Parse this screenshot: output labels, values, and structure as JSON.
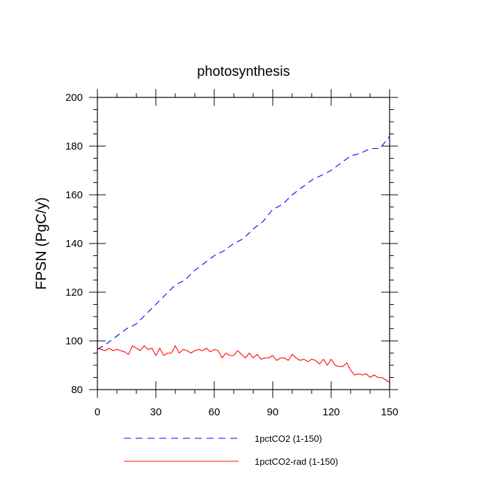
{
  "chart_data": {
    "type": "line",
    "title": "photosynthesis",
    "xlabel": "",
    "ylabel": "FPSN  (PgC/y)",
    "xlim": [
      0,
      150
    ],
    "ylim": [
      80,
      200
    ],
    "xticks": [
      0,
      30,
      60,
      90,
      120,
      150
    ],
    "yticks": [
      80,
      100,
      120,
      140,
      160,
      180,
      200
    ],
    "grid": false,
    "legend_position": "bottom",
    "series": [
      {
        "name": "1pctCO2 (1-150)",
        "color": "#0000ff",
        "style": "dashed",
        "x": [
          0,
          5,
          10,
          15,
          20,
          25,
          30,
          35,
          40,
          45,
          50,
          55,
          60,
          65,
          70,
          75,
          80,
          85,
          90,
          95,
          100,
          105,
          110,
          115,
          120,
          125,
          130,
          135,
          140,
          145,
          150
        ],
        "values": [
          96.5,
          99,
          102,
          105,
          107,
          111,
          115,
          119,
          123,
          125,
          129,
          132,
          135,
          137,
          140,
          142,
          146,
          149,
          154,
          156,
          160,
          163,
          166,
          168,
          170,
          173,
          176,
          177,
          179,
          179,
          184
        ]
      },
      {
        "name": "1pctCO2-rad (1-150)",
        "color": "#ff0000",
        "style": "solid",
        "x": [
          0,
          2,
          4,
          6,
          8,
          10,
          12,
          14,
          16,
          18,
          20,
          22,
          24,
          26,
          28,
          30,
          32,
          34,
          36,
          38,
          40,
          42,
          44,
          46,
          48,
          50,
          52,
          54,
          56,
          58,
          60,
          62,
          64,
          66,
          68,
          70,
          72,
          74,
          76,
          78,
          80,
          82,
          84,
          86,
          88,
          90,
          92,
          94,
          96,
          98,
          100,
          102,
          104,
          106,
          108,
          110,
          112,
          114,
          116,
          118,
          120,
          122,
          124,
          126,
          128,
          130,
          132,
          134,
          136,
          138,
          140,
          142,
          144,
          146,
          148,
          150
        ],
        "values": [
          97,
          96.5,
          96,
          97,
          96,
          96.5,
          96,
          95.5,
          94.5,
          98,
          97,
          96,
          98,
          96.5,
          97,
          94,
          97,
          94,
          95,
          95,
          98,
          95,
          96.5,
          96,
          95,
          96,
          96.5,
          96,
          97,
          95.5,
          96.5,
          96,
          93,
          95,
          94,
          94,
          96,
          94.5,
          93,
          95,
          93,
          94.5,
          92.5,
          93,
          93,
          94,
          92,
          93,
          93,
          92,
          94.5,
          93,
          92,
          92.5,
          91.5,
          92.5,
          92,
          90.5,
          92.5,
          90,
          92.5,
          90,
          89.5,
          89.5,
          91,
          88,
          86,
          86.5,
          86,
          86.5,
          85,
          86,
          85,
          85,
          84,
          83
        ]
      }
    ]
  }
}
